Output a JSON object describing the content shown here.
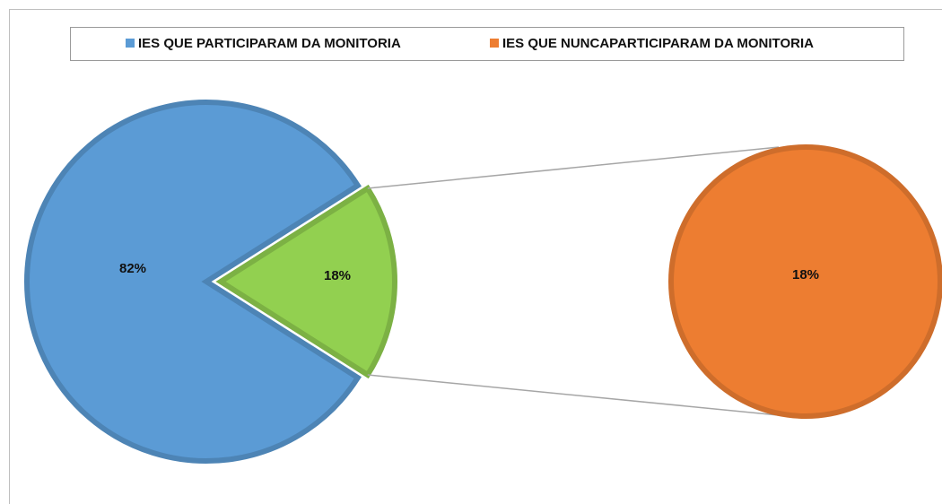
{
  "chart_data": {
    "type": "pie-of-pie",
    "legend": "top",
    "series": [
      {
        "name": "IES QUE PARTICIPARAM DA MONITORIA",
        "color": "#5b9bd5",
        "values": [
          82
        ],
        "value_labels": [
          "82%"
        ]
      },
      {
        "name": "IES QUE NUNCAPARTICIPARAM DA MONITORIA",
        "color": "#ed7d31",
        "values": [
          18
        ],
        "value_labels": [
          "18%"
        ]
      }
    ],
    "other": {
      "color": "#92d050",
      "values": [
        18
      ],
      "value_labels": [
        "18%"
      ]
    }
  }
}
